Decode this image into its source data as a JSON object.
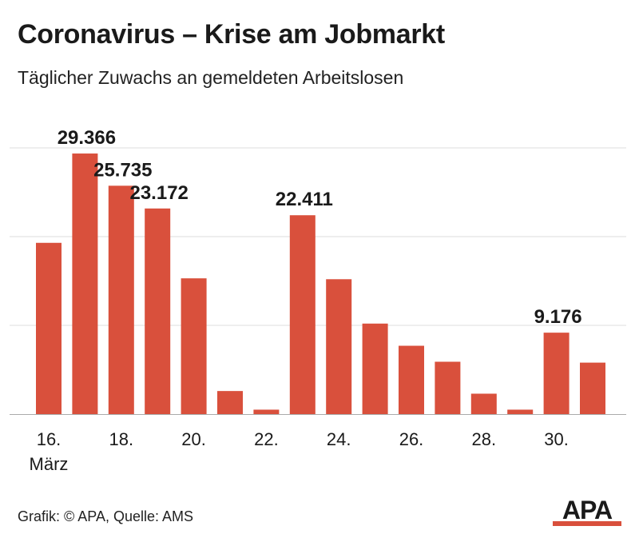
{
  "title": "Coronavirus – Krise am Jobmarkt",
  "subtitle": "Täglicher Zuwachs an gemeldeten Arbeitslosen",
  "footer": "Grafik: © APA, Quelle: AMS",
  "logo_text": "APA",
  "colors": {
    "bar": "#d9503c",
    "grid": "#dddddd",
    "axis": "#aaaaaa",
    "text": "#1a1a1a"
  },
  "chart_data": {
    "type": "bar",
    "categories": [
      "16.",
      "17.",
      "18.",
      "19.",
      "20.",
      "21.",
      "22.",
      "23.",
      "24.",
      "25.",
      "26.",
      "27.",
      "28.",
      "29.",
      "30.",
      "31."
    ],
    "values": [
      19300,
      29366,
      25735,
      23172,
      15300,
      2600,
      500,
      22411,
      15200,
      10200,
      7700,
      5900,
      2300,
      500,
      9176,
      5800
    ],
    "data_labels": [
      "",
      "29.366",
      "25.735",
      "23.172",
      "",
      "",
      "",
      "22.411",
      "",
      "",
      "",
      "",
      "",
      "",
      "9.176",
      ""
    ],
    "tick_labels": [
      "16.",
      "18.",
      "20.",
      "22.",
      "24.",
      "26.",
      "28.",
      "30."
    ],
    "month_label": "März",
    "ylim": [
      0,
      30000
    ],
    "gridlines": [
      10000,
      20000,
      30000
    ],
    "grid": true,
    "xlabel": "",
    "ylabel": ""
  }
}
